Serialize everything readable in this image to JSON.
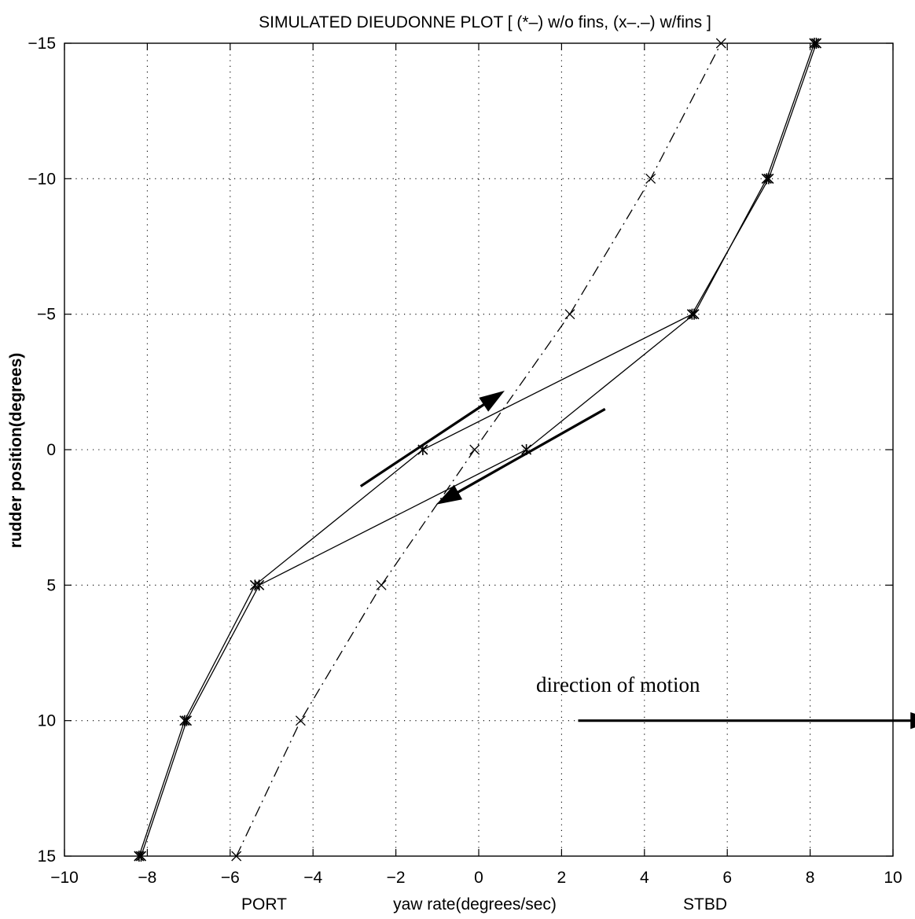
{
  "chart_data": {
    "type": "line",
    "title": "SIMULATED DIEUDONNE PLOT [ (*–) w/o fins, (x–.–) w/fins ]",
    "xlabel": "yaw rate(degrees/sec)",
    "ylabel": "rudder position(degrees)",
    "xlim": [
      -10,
      10
    ],
    "ylim": [
      -15,
      15
    ],
    "y_reversed": true,
    "xticks": [
      -10,
      -8,
      -6,
      -4,
      -2,
      0,
      2,
      4,
      6,
      8,
      10
    ],
    "yticks": [
      -15,
      -10,
      -5,
      0,
      5,
      10,
      15
    ],
    "xtick_labels": [
      "−10",
      "−8",
      "−6",
      "−4",
      "−2",
      "0",
      "2",
      "4",
      "6",
      "8",
      "10"
    ],
    "ytick_labels": [
      "−15",
      "−10",
      "−5",
      "0",
      "5",
      "10",
      "15"
    ],
    "grid": true,
    "port_label": "PORT",
    "stbd_label": "STBD",
    "annotation": "direction of motion",
    "series": [
      {
        "marker": "*",
        "linestyle": "solid",
        "x": [
          -8.2,
          -7.1,
          -5.4,
          -1.35,
          5.15,
          7.0,
          8.15
        ],
        "y": [
          15,
          10,
          5,
          0,
          -5,
          -10,
          -15
        ]
      },
      {
        "marker": "*",
        "linestyle": "solid",
        "x": [
          8.1,
          6.95,
          5.2,
          1.15,
          -5.3,
          -7.05,
          -8.15
        ],
        "y": [
          -15,
          -10,
          -5,
          0,
          5,
          10,
          15
        ]
      },
      {
        "marker": "x",
        "linestyle": "dashdot",
        "x": [
          -5.85,
          -4.3,
          -2.35,
          -0.1,
          2.2,
          4.15,
          5.85
        ],
        "y": [
          15,
          10,
          5,
          0,
          -5,
          -10,
          -15
        ]
      }
    ],
    "arrows": [
      {
        "from": [
          -2.85,
          1.35
        ],
        "to": [
          0.6,
          -2.15
        ]
      },
      {
        "from": [
          3.05,
          -1.5
        ],
        "to": [
          -1.0,
          2.0
        ]
      },
      {
        "from": [
          2.4,
          10.0
        ],
        "to": [
          11.0,
          10.0
        ]
      }
    ]
  }
}
